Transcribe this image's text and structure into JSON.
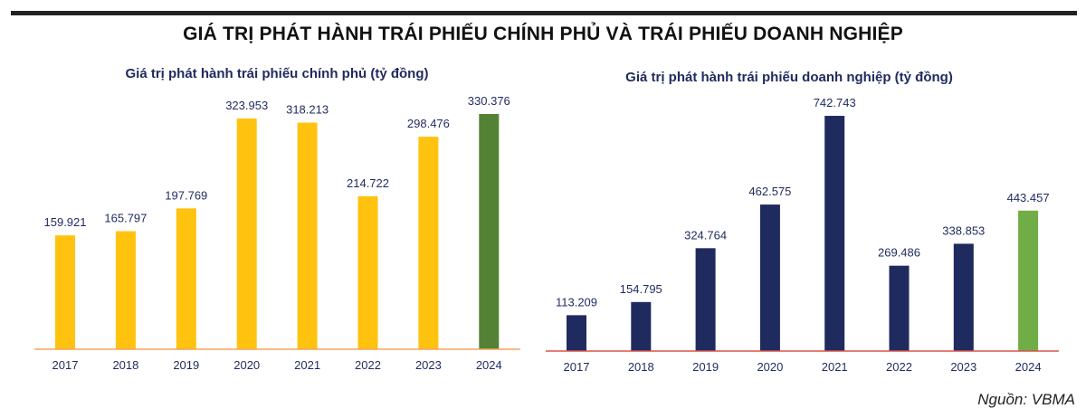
{
  "title": "GIÁ TRỊ PHÁT HÀNH TRÁI PHIẾU CHÍNH PHỦ VÀ TRÁI PHIẾU DOANH NGHIỆP",
  "source": "Nguồn: VBMA",
  "colors": {
    "gov_bar": "#FFC20E",
    "gov_highlight": "#548235",
    "gov_axis": "#F4A460",
    "corp_bar": "#1F2A5E",
    "corp_highlight": "#70AD47",
    "corp_axis": "#D9534F",
    "text": "#1F2A5E"
  },
  "chart_data": [
    {
      "type": "bar",
      "title": "Giá trị phát hành trái phiếu chính phủ (tỷ đồng)",
      "categories": [
        "2017",
        "2018",
        "2019",
        "2020",
        "2021",
        "2022",
        "2023",
        "2024"
      ],
      "values": [
        159.921,
        165.797,
        197.769,
        323.953,
        318.213,
        214.722,
        298.476,
        330.376
      ],
      "labels": [
        "159.921",
        "165.797",
        "197.769",
        "323.953",
        "318.213",
        "214.722",
        "298.476",
        "330.376"
      ],
      "highlight_index": 7,
      "xlabel": "",
      "ylabel": "",
      "grid": false
    },
    {
      "type": "bar",
      "title": "Giá trị phát hành trái phiếu doanh nghiệp (tỷ đồng)",
      "categories": [
        "2017",
        "2018",
        "2019",
        "2020",
        "2021",
        "2022",
        "2023",
        "2024"
      ],
      "values": [
        113.209,
        154.795,
        324.764,
        462.575,
        742.743,
        269.486,
        338.853,
        443.457
      ],
      "labels": [
        "113.209",
        "154.795",
        "324.764",
        "462.575",
        "742.743",
        "269.486",
        "338.853",
        "443.457"
      ],
      "highlight_index": 7,
      "xlabel": "",
      "ylabel": "",
      "grid": false
    }
  ]
}
